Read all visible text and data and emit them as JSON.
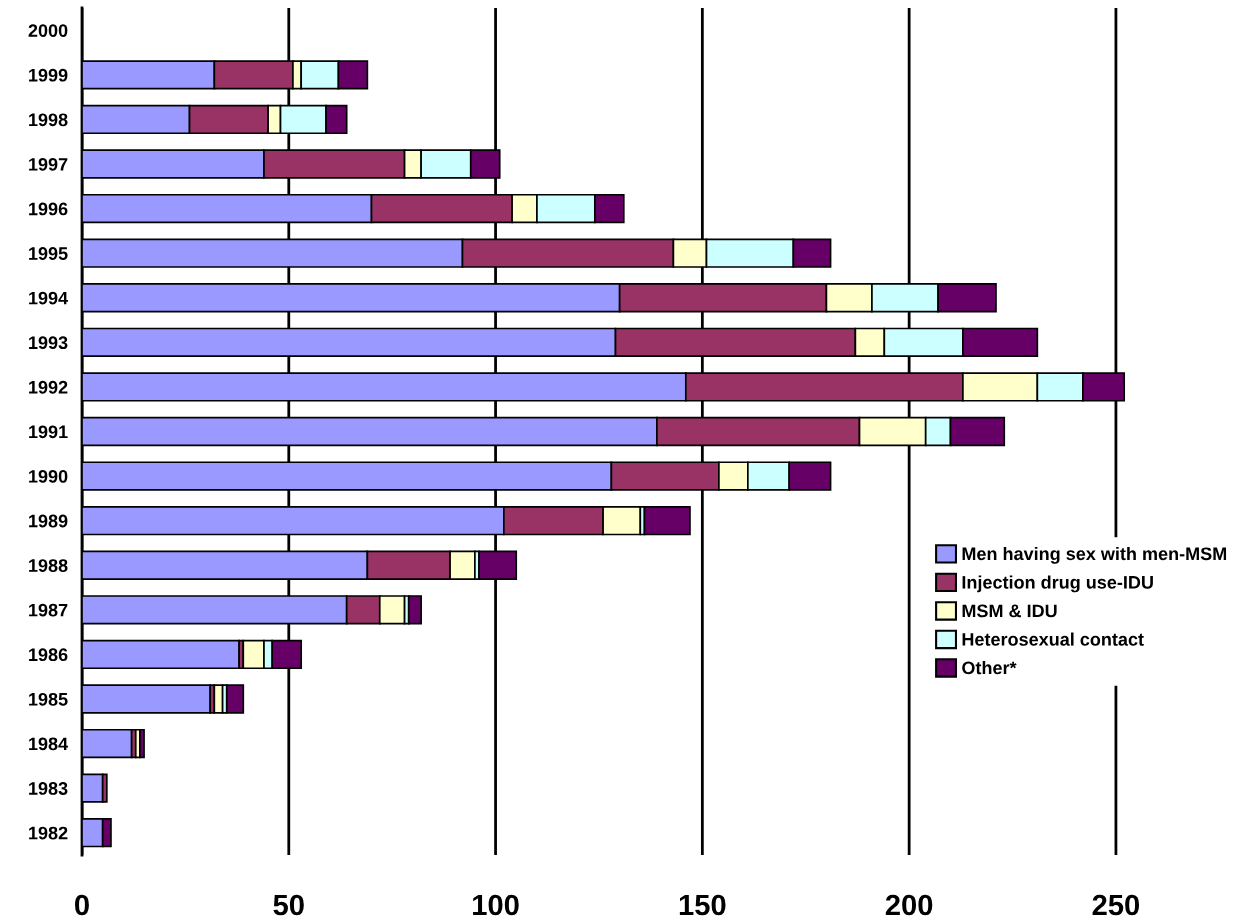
{
  "chart_data": {
    "type": "bar",
    "orientation": "horizontal",
    "stacked": true,
    "categories": [
      "2000",
      "1999",
      "1998",
      "1997",
      "1996",
      "1995",
      "1994",
      "1993",
      "1992",
      "1991",
      "1990",
      "1989",
      "1988",
      "1987",
      "1986",
      "1985",
      "1984",
      "1983",
      "1982"
    ],
    "series": [
      {
        "name": "Men having sex with men-MSM",
        "color": "#9999ff",
        "values": [
          null,
          32,
          26,
          44,
          70,
          92,
          130,
          129,
          146,
          139,
          128,
          102,
          69,
          64,
          38,
          31,
          12,
          5,
          5
        ]
      },
      {
        "name": "Injection drug use-IDU",
        "color": "#993366",
        "values": [
          null,
          19,
          19,
          34,
          34,
          51,
          50,
          58,
          67,
          49,
          26,
          24,
          20,
          8,
          1,
          1,
          1,
          1,
          0
        ]
      },
      {
        "name": "MSM & IDU",
        "color": "#ffffcc",
        "values": [
          null,
          2,
          3,
          4,
          6,
          8,
          11,
          7,
          18,
          16,
          7,
          9,
          6,
          6,
          5,
          2,
          1,
          0,
          0
        ]
      },
      {
        "name": "Heterosexual contact",
        "color": "#ccffff",
        "values": [
          null,
          9,
          11,
          12,
          14,
          21,
          16,
          19,
          11,
          6,
          10,
          1,
          1,
          1,
          2,
          1,
          0,
          0,
          0
        ]
      },
      {
        "name": "Other*",
        "color": "#660066",
        "values": [
          null,
          7,
          5,
          7,
          7,
          9,
          14,
          18,
          10,
          13,
          10,
          11,
          9,
          3,
          7,
          4,
          1,
          0,
          2
        ]
      }
    ],
    "xlim": [
      0,
      280
    ],
    "xticks": [
      0,
      50,
      100,
      150,
      200,
      250
    ],
    "grid": "x",
    "legend": "bottom right"
  }
}
